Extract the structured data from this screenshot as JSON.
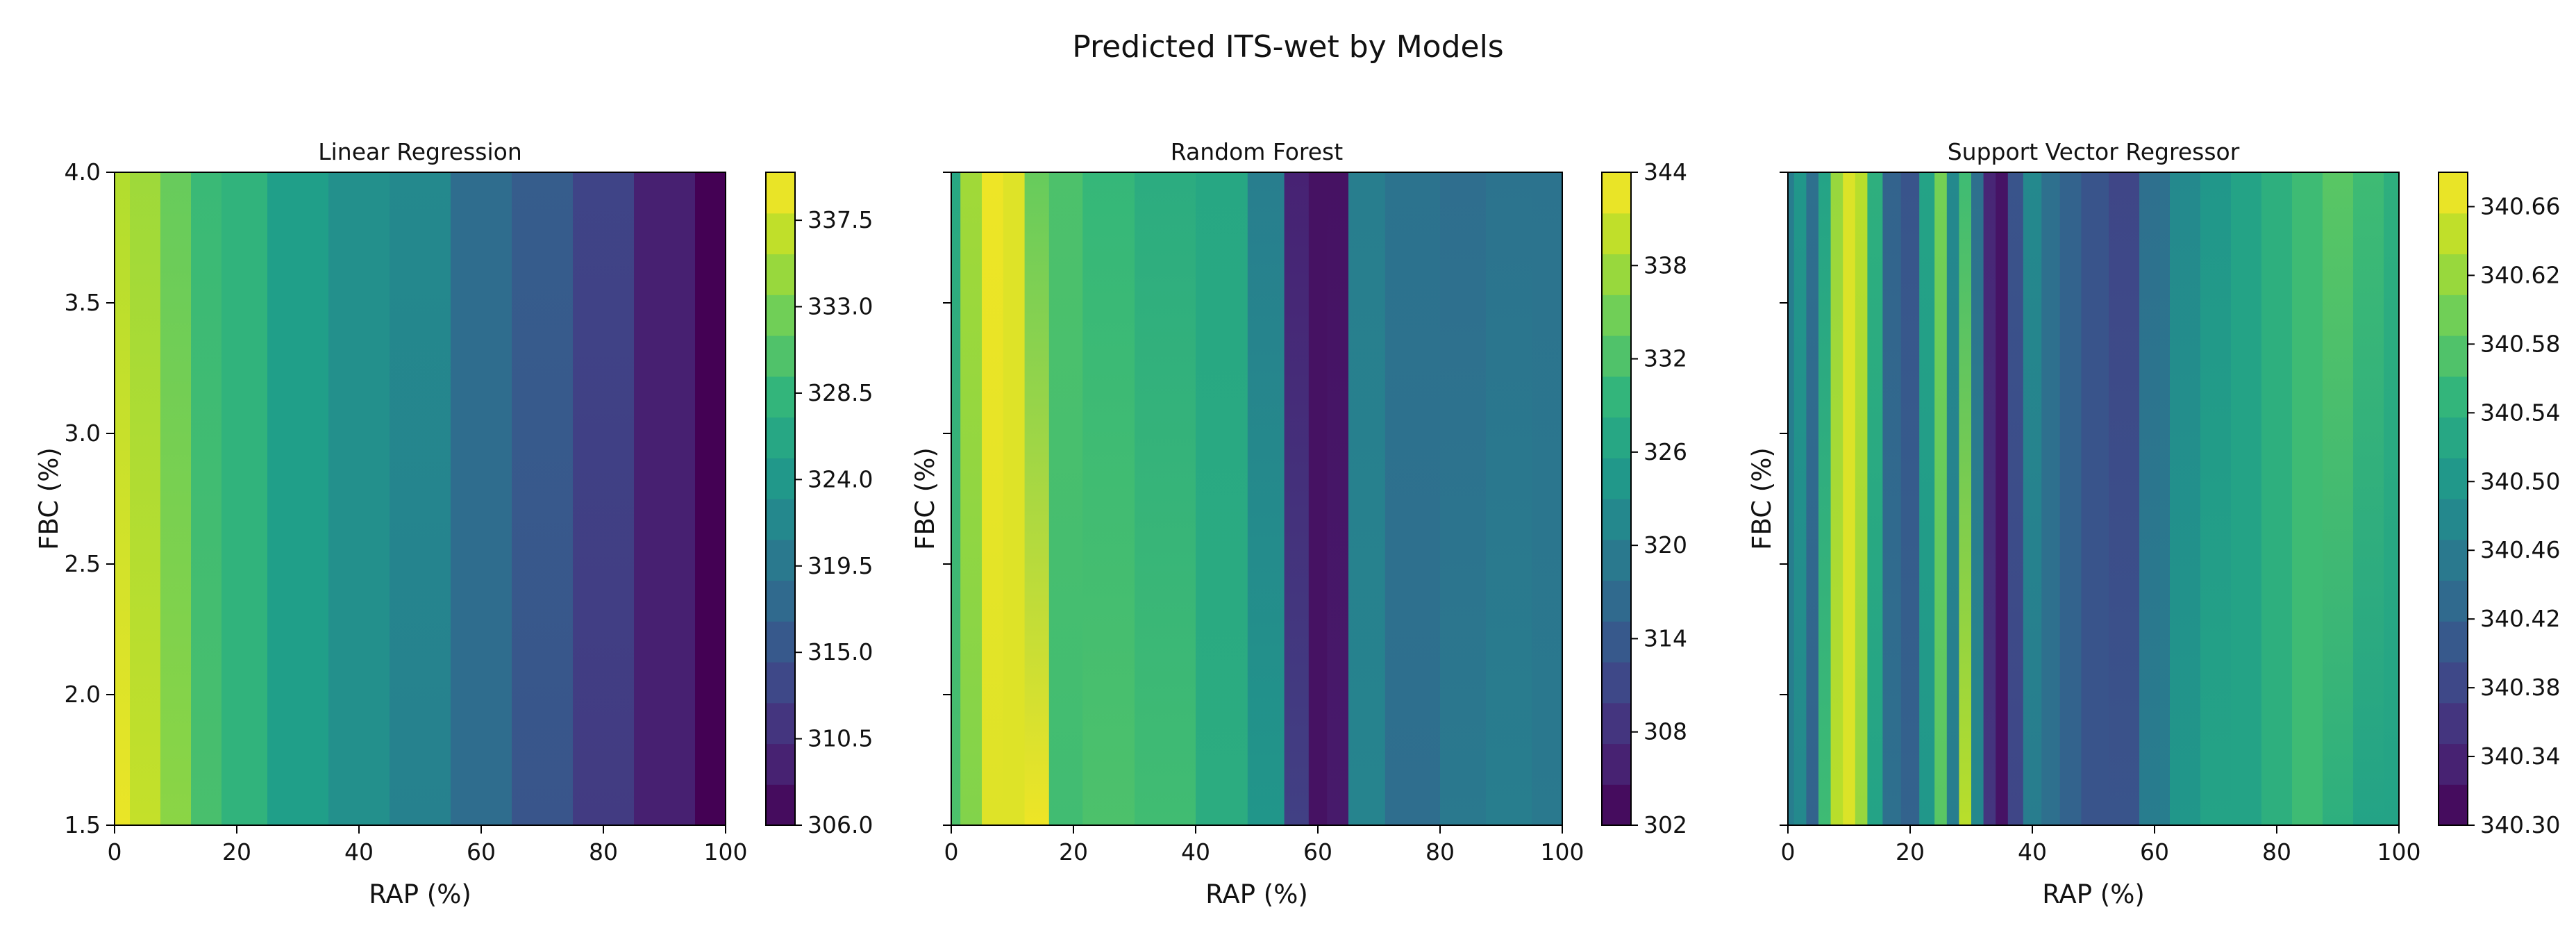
{
  "figure": {
    "title": "Predicted ITS-wet by Models"
  },
  "chart_data": [
    {
      "type": "heatmap",
      "title": "Linear Regression",
      "xlabel": "RAP (%)",
      "ylabel": "FBC (%)",
      "xlim": [
        0,
        100
      ],
      "ylim": [
        1.5,
        4.0
      ],
      "x_ticks": [
        "0",
        "20",
        "40",
        "60",
        "80",
        "100"
      ],
      "y_ticks": [
        "1.5",
        "2.0",
        "2.5",
        "3.0",
        "3.5",
        "4.0"
      ],
      "colorbar": {
        "min": 306.0,
        "max": 340.0,
        "ticks": [
          "306.0",
          "310.5",
          "315.0",
          "319.5",
          "324.0",
          "328.5",
          "333.0",
          "337.5"
        ]
      },
      "x": [
        0,
        5,
        10,
        15,
        20,
        30,
        40,
        50,
        60,
        70,
        80,
        90,
        100
      ],
      "profile_y_max": [
        336,
        335,
        332,
        329,
        328,
        325,
        323,
        322,
        318,
        316,
        313,
        309,
        306
      ],
      "profile_y_min": [
        339,
        337,
        334,
        330,
        328,
        325,
        323,
        321,
        318,
        315,
        312,
        309,
        306
      ]
    },
    {
      "type": "heatmap",
      "title": "Random Forest",
      "xlabel": "RAP (%)",
      "ylabel": "FBC (%)",
      "xlim": [
        0,
        100
      ],
      "ylim": [
        1.5,
        4.0
      ],
      "x_ticks": [
        "0",
        "20",
        "40",
        "60",
        "80",
        "100"
      ],
      "y_ticks": [
        "",
        "",
        "",
        "",
        "",
        ""
      ],
      "colorbar": {
        "min": 302,
        "max": 344,
        "ticks": [
          "302",
          "308",
          "314",
          "320",
          "326",
          "332",
          "338",
          "344"
        ]
      },
      "x": [
        0,
        3,
        7,
        10,
        14,
        18,
        25,
        35,
        45,
        52,
        57,
        60,
        63,
        67,
        75,
        85,
        90,
        100
      ],
      "profile_y_max": [
        327,
        338,
        343,
        342,
        334,
        332,
        330,
        328,
        327,
        320,
        306,
        304,
        304,
        320,
        318,
        317,
        318,
        318
      ],
      "profile_y_min": [
        332,
        336,
        342,
        342,
        343,
        331,
        332,
        331,
        328,
        324,
        310,
        304,
        305,
        321,
        317,
        319,
        320,
        319
      ]
    },
    {
      "type": "heatmap",
      "title": "Support Vector Regressor",
      "xlabel": "RAP (%)",
      "ylabel": "FBC (%)",
      "xlim": [
        0,
        100
      ],
      "ylim": [
        1.5,
        4.0
      ],
      "x_ticks": [
        "0",
        "20",
        "40",
        "60",
        "80",
        "100"
      ],
      "y_ticks": [
        "",
        "",
        "",
        "",
        "",
        ""
      ],
      "colorbar": {
        "min": 340.3,
        "max": 340.68,
        "ticks": [
          "340.30",
          "340.34",
          "340.38",
          "340.42",
          "340.46",
          "340.50",
          "340.54",
          "340.58",
          "340.62",
          "340.66"
        ]
      },
      "x": [
        0,
        2,
        4,
        6,
        8,
        10,
        12,
        14,
        17,
        20,
        23,
        25,
        27,
        29,
        31,
        33,
        35,
        37,
        40,
        43,
        46,
        50,
        55,
        60,
        65,
        70,
        75,
        80,
        85,
        90,
        95,
        100
      ],
      "profile_y_max": [
        340.46,
        340.5,
        340.44,
        340.52,
        340.62,
        340.66,
        340.64,
        340.54,
        340.42,
        340.4,
        340.52,
        340.6,
        340.48,
        340.56,
        340.44,
        340.34,
        340.32,
        340.4,
        340.48,
        340.44,
        340.42,
        340.4,
        340.38,
        340.44,
        340.48,
        340.5,
        340.52,
        340.54,
        340.56,
        340.58,
        340.56,
        340.54
      ],
      "profile_y_min": [
        340.46,
        340.48,
        340.42,
        340.56,
        340.64,
        340.66,
        340.62,
        340.52,
        340.44,
        340.42,
        340.5,
        340.58,
        340.46,
        340.64,
        340.48,
        340.36,
        340.32,
        340.38,
        340.46,
        340.44,
        340.42,
        340.4,
        340.4,
        340.46,
        340.5,
        340.52,
        340.52,
        340.54,
        340.56,
        340.54,
        340.52,
        340.52
      ]
    }
  ]
}
